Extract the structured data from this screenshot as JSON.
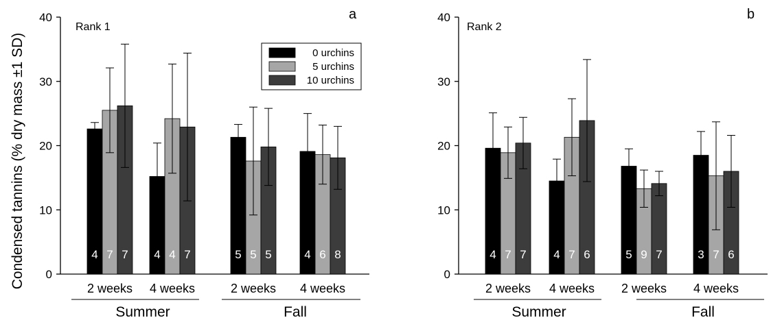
{
  "chart_data": {
    "type": "bar",
    "ylabel": "Condensed tannins (% dry mass ±1 SD)",
    "ylim": [
      0,
      40
    ],
    "yticks": [
      0,
      10,
      20,
      30,
      40
    ],
    "legend": {
      "placement": "top-right of panel a",
      "entries": [
        "0 urchins",
        "5 urchins",
        "10 urchins"
      ]
    },
    "series_colors": [
      "#000000",
      "#a6a6a6",
      "#3c3c3c"
    ],
    "panels": [
      {
        "title": "Rank 1",
        "letter": "a",
        "seasons": [
          "Summer",
          "Fall"
        ],
        "groups": [
          {
            "label": "2 weeks",
            "season": "Summer",
            "bars": [
              {
                "value": 22.6,
                "sd": 1.0,
                "n": "4"
              },
              {
                "value": 25.5,
                "sd": 6.6,
                "n": "7"
              },
              {
                "value": 26.2,
                "sd": 9.6,
                "n": "7"
              }
            ]
          },
          {
            "label": "4 weeks",
            "season": "Summer",
            "bars": [
              {
                "value": 15.2,
                "sd": 5.2,
                "n": "4"
              },
              {
                "value": 24.2,
                "sd": 8.5,
                "n": "4"
              },
              {
                "value": 22.9,
                "sd": 11.5,
                "n": "7"
              }
            ]
          },
          {
            "label": "2 weeks",
            "season": "Fall",
            "bars": [
              {
                "value": 21.3,
                "sd": 2.0,
                "n": "5"
              },
              {
                "value": 17.6,
                "sd": 8.4,
                "n": "5"
              },
              {
                "value": 19.8,
                "sd": 6.0,
                "n": "5"
              }
            ]
          },
          {
            "label": "4 weeks",
            "season": "Fall",
            "bars": [
              {
                "value": 19.1,
                "sd": 5.9,
                "n": "4"
              },
              {
                "value": 18.6,
                "sd": 4.6,
                "n": "6"
              },
              {
                "value": 18.1,
                "sd": 4.9,
                "n": "8"
              }
            ]
          }
        ]
      },
      {
        "title": "Rank 2",
        "letter": "b",
        "seasons": [
          "Summer",
          "Fall"
        ],
        "groups": [
          {
            "label": "2 weeks",
            "season": "Summer",
            "bars": [
              {
                "value": 19.6,
                "sd": 5.5,
                "n": "4"
              },
              {
                "value": 18.9,
                "sd": 4.0,
                "n": "7"
              },
              {
                "value": 20.4,
                "sd": 4.0,
                "n": "7"
              }
            ]
          },
          {
            "label": "4 weeks",
            "season": "Summer",
            "bars": [
              {
                "value": 14.5,
                "sd": 3.4,
                "n": "4"
              },
              {
                "value": 21.3,
                "sd": 6.0,
                "n": "7"
              },
              {
                "value": 23.9,
                "sd": 9.5,
                "n": "6"
              }
            ]
          },
          {
            "label": "2 weeks",
            "season": "Fall",
            "bars": [
              {
                "value": 16.8,
                "sd": 2.7,
                "n": "5"
              },
              {
                "value": 13.3,
                "sd": 2.9,
                "n": "9"
              },
              {
                "value": 14.1,
                "sd": 1.9,
                "n": "7"
              }
            ]
          },
          {
            "label": "4 weeks",
            "season": "Fall",
            "bars": [
              {
                "value": 18.5,
                "sd": 3.7,
                "n": "3"
              },
              {
                "value": 15.3,
                "sd": 8.4,
                "n": "7"
              },
              {
                "value": 16.0,
                "sd": 5.6,
                "n": "6"
              }
            ]
          }
        ]
      }
    ]
  }
}
